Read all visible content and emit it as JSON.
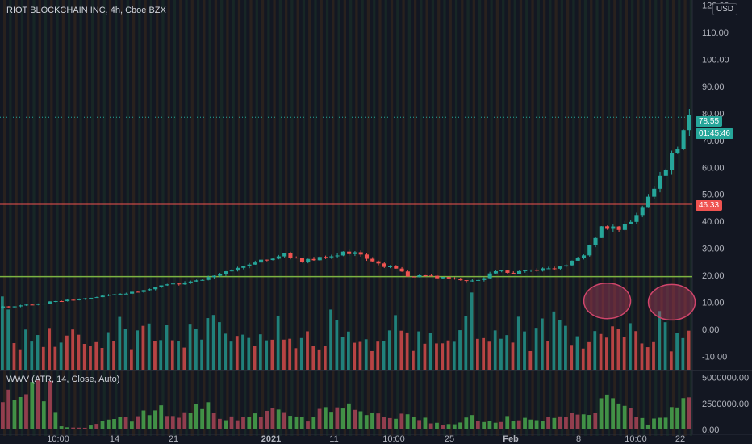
{
  "header": {
    "title": "RIOT BLOCKCHAIN INC, 4h, Cboe BZX",
    "currency": "USD"
  },
  "indicator": {
    "title": "WWV (ATR, 14, Close, Auto)"
  },
  "price_tags": {
    "last_price": "78.55",
    "countdown": "01:45:46",
    "line_price": "46.33"
  },
  "colors": {
    "background": "#131722",
    "up": "#26a69a",
    "down": "#ef5350",
    "grid_orange": "#3a2a1c",
    "grid_green": "#1b3328",
    "highlight": "#d0456b",
    "support_line": "#7cb342",
    "hline": "#ef5350"
  },
  "chart_data": [
    {
      "type": "candlestick",
      "title": "RIOT BLOCKCHAIN INC, 4h, Cboe BZX",
      "y_axis_ticks": [
        "120.00",
        "110.00",
        "100.00",
        "90.00",
        "80.00",
        "70.00",
        "60.00",
        "50.00",
        "40.00",
        "30.00",
        "20.00",
        "10.00",
        "0.00",
        "-10.00"
      ],
      "y_range": [
        -15,
        122
      ],
      "x_axis_ticks": [
        "10:00",
        "14",
        "21",
        "2021",
        "11",
        "10:00",
        "25",
        "Feb",
        "8",
        "10:00",
        "22"
      ],
      "horizontal_line": 46.33,
      "support_line": 19.5,
      "last_price": 78.55,
      "close_path": [
        [
          0,
          8.2
        ],
        [
          3,
          8.8
        ],
        [
          6,
          9.5
        ],
        [
          9,
          10.3
        ],
        [
          12,
          11.0
        ],
        [
          15,
          11.8
        ],
        [
          18,
          12.6
        ],
        [
          21,
          13.5
        ],
        [
          24,
          14.2
        ],
        [
          27,
          16.0
        ],
        [
          30,
          17.0
        ],
        [
          33,
          18.0
        ],
        [
          36,
          20.0
        ],
        [
          39,
          21.5
        ],
        [
          42,
          24.0
        ],
        [
          45,
          26.0
        ],
        [
          48,
          27.5
        ],
        [
          51,
          25.5
        ],
        [
          54,
          26.5
        ],
        [
          57,
          28.0
        ],
        [
          60,
          28.5
        ],
        [
          63,
          25.0
        ],
        [
          66,
          23.0
        ],
        [
          69,
          20.0
        ],
        [
          72,
          19.5
        ],
        [
          75,
          19.0
        ],
        [
          78,
          18.5
        ],
        [
          81,
          18.0
        ],
        [
          84,
          22.0
        ],
        [
          87,
          21.0
        ],
        [
          90,
          22.0
        ],
        [
          93,
          22.5
        ],
        [
          96,
          24.0
        ],
        [
          99,
          27.0
        ],
        [
          102,
          38.0
        ],
        [
          105,
          37.0
        ],
        [
          108,
          42.0
        ],
        [
          111,
          52.0
        ],
        [
          114,
          64.0
        ],
        [
          116,
          72.0
        ],
        [
          117,
          78.55
        ]
      ],
      "volume_path": [
        [
          0,
          16
        ],
        [
          4,
          -6
        ],
        [
          8,
          10
        ],
        [
          12,
          -10
        ],
        [
          16,
          3
        ],
        [
          20,
          -8
        ],
        [
          24,
          12
        ],
        [
          28,
          -7
        ],
        [
          32,
          8
        ],
        [
          36,
          -11
        ],
        [
          40,
          6
        ],
        [
          44,
          -5
        ],
        [
          48,
          14
        ],
        [
          52,
          -9
        ],
        [
          56,
          13
        ],
        [
          60,
          -8
        ],
        [
          64,
          4
        ],
        [
          68,
          -12
        ],
        [
          72,
          9
        ],
        [
          76,
          -6
        ],
        [
          80,
          18
        ],
        [
          84,
          -3
        ],
        [
          88,
          7
        ],
        [
          92,
          -9
        ],
        [
          96,
          -8
        ],
        [
          100,
          2
        ],
        [
          103,
          8
        ],
        [
          106,
          12
        ],
        [
          109,
          6
        ],
        [
          112,
          -10
        ],
        [
          115,
          3
        ],
        [
          117,
          -8
        ]
      ],
      "highlights": [
        {
          "x": 103,
          "y": 10.5
        },
        {
          "x": 114,
          "y": 10.0
        }
      ]
    },
    {
      "type": "bar",
      "name": "WWV (ATR, 14, Close, Auto)",
      "y_axis_ticks": [
        "5000000.00",
        "2500000.00",
        "0.00"
      ],
      "y_range": [
        0,
        5600000
      ],
      "envelope": [
        [
          0,
          4700000
        ],
        [
          8,
          4900000
        ],
        [
          10,
          400000
        ],
        [
          14,
          200000
        ],
        [
          18,
          1500000
        ],
        [
          22,
          1100000
        ],
        [
          26,
          2600000
        ],
        [
          30,
          2000000
        ],
        [
          34,
          3100000
        ],
        [
          38,
          1200000
        ],
        [
          42,
          1500000
        ],
        [
          46,
          2500000
        ],
        [
          52,
          1300000
        ],
        [
          58,
          3500000
        ],
        [
          62,
          2200000
        ],
        [
          66,
          1800000
        ],
        [
          72,
          1200000
        ],
        [
          76,
          600000
        ],
        [
          80,
          1400000
        ],
        [
          84,
          1000000
        ],
        [
          88,
          1600000
        ],
        [
          92,
          1300000
        ],
        [
          96,
          1500000
        ],
        [
          100,
          2500000
        ],
        [
          104,
          4200000
        ],
        [
          108,
          1500000
        ],
        [
          110,
          700000
        ],
        [
          114,
          2500000
        ],
        [
          117,
          4700000
        ]
      ]
    }
  ]
}
